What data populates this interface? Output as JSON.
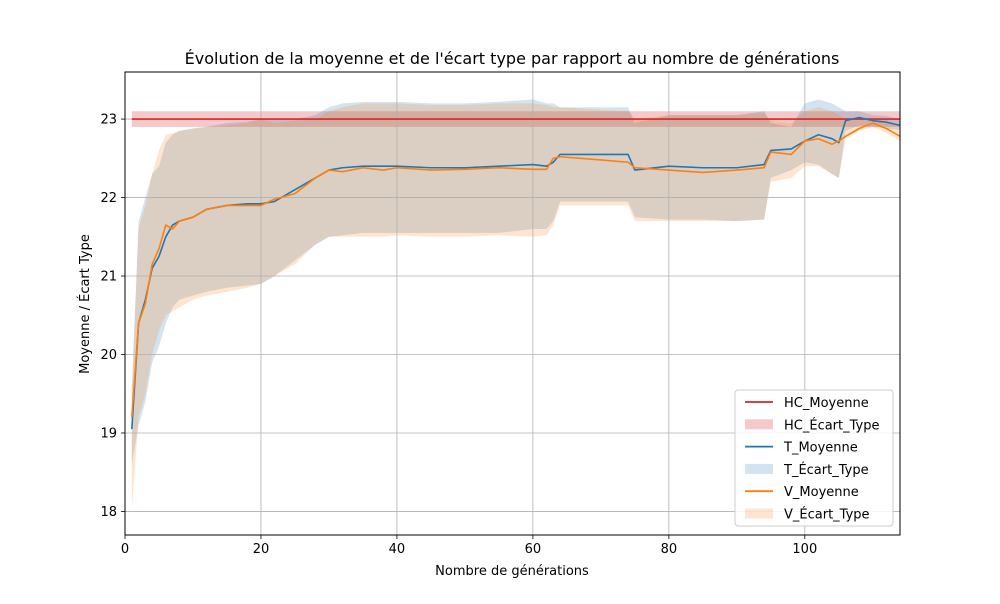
{
  "chart_data": {
    "type": "line",
    "title": "Évolution de la moyenne et de l'écart type par rapport au nombre de générations",
    "xlabel": "Nombre de générations",
    "ylabel": "Moyenne / Écart Type",
    "xlim": [
      0,
      114
    ],
    "ylim": [
      17.7,
      23.6
    ],
    "xticks": [
      0,
      20,
      40,
      60,
      80,
      100
    ],
    "yticks": [
      18,
      19,
      20,
      21,
      22,
      23
    ],
    "grid": true,
    "legend_position": "lower right",
    "legend": [
      "HC_Moyenne",
      "HC_Écart_Type",
      "T_Moyenne",
      "T_Écart_Type",
      "V_Moyenne",
      "V_Écart_Type"
    ],
    "colors": {
      "hc": "#d62728",
      "t": "#1f77b4",
      "v": "#ff7f0e"
    },
    "hc": {
      "mean": 23.0,
      "band": [
        22.9,
        23.1
      ],
      "x_range": [
        1,
        114
      ]
    },
    "series": [
      {
        "name": "T_Moyenne",
        "band_name": "T_Écart_Type",
        "x": [
          1,
          2,
          3,
          4,
          5,
          6,
          7,
          8,
          10,
          12,
          15,
          18,
          20,
          22,
          25,
          28,
          30,
          32,
          35,
          38,
          40,
          45,
          50,
          55,
          60,
          62,
          63,
          64,
          70,
          74,
          75,
          80,
          85,
          90,
          94,
          95,
          98,
          100,
          102,
          104,
          105,
          106,
          108,
          110,
          112,
          114
        ],
        "values": [
          19.05,
          20.4,
          20.7,
          21.1,
          21.25,
          21.5,
          21.65,
          21.7,
          21.75,
          21.85,
          21.9,
          21.92,
          21.92,
          21.95,
          22.1,
          22.25,
          22.35,
          22.38,
          22.4,
          22.4,
          22.4,
          22.38,
          22.38,
          22.4,
          22.42,
          22.4,
          22.45,
          22.55,
          22.55,
          22.55,
          22.35,
          22.4,
          22.38,
          22.38,
          22.42,
          22.6,
          22.62,
          22.72,
          22.8,
          22.75,
          22.7,
          22.98,
          23.02,
          22.98,
          22.96,
          22.92
        ],
        "band_lower": [
          18.6,
          19.1,
          19.4,
          19.9,
          20.1,
          20.4,
          20.6,
          20.7,
          20.75,
          20.8,
          20.85,
          20.88,
          20.9,
          21.0,
          21.2,
          21.4,
          21.5,
          21.52,
          21.55,
          21.55,
          21.55,
          21.55,
          21.55,
          21.55,
          21.6,
          21.6,
          21.7,
          21.95,
          21.95,
          21.95,
          21.75,
          21.72,
          21.72,
          21.7,
          21.72,
          22.25,
          22.35,
          22.45,
          22.42,
          22.3,
          22.25,
          22.85,
          22.92,
          22.9,
          22.88,
          22.86
        ],
        "band_upper": [
          19.5,
          21.7,
          22.0,
          22.3,
          22.4,
          22.7,
          22.8,
          22.85,
          22.88,
          22.9,
          22.95,
          22.97,
          23.0,
          23.0,
          23.0,
          23.05,
          23.15,
          23.2,
          23.22,
          23.22,
          23.22,
          23.2,
          23.2,
          23.22,
          23.25,
          23.2,
          23.2,
          23.15,
          23.15,
          23.15,
          22.95,
          23.05,
          23.05,
          23.05,
          23.1,
          22.95,
          22.9,
          23.2,
          23.25,
          23.2,
          23.15,
          23.1,
          23.1,
          23.05,
          23.04,
          23.0
        ]
      },
      {
        "name": "V_Moyenne",
        "band_name": "V_Écart_Type",
        "x": [
          1,
          2,
          3,
          4,
          5,
          6,
          7,
          8,
          10,
          12,
          15,
          18,
          20,
          22,
          25,
          28,
          30,
          32,
          35,
          38,
          40,
          45,
          50,
          55,
          60,
          62,
          63,
          64,
          70,
          74,
          75,
          80,
          85,
          90,
          94,
          95,
          98,
          100,
          102,
          104,
          105,
          106,
          108,
          110,
          112,
          114
        ],
        "values": [
          19.2,
          20.4,
          20.65,
          21.15,
          21.35,
          21.65,
          21.6,
          21.7,
          21.75,
          21.85,
          21.9,
          21.9,
          21.9,
          21.98,
          22.05,
          22.25,
          22.35,
          22.33,
          22.38,
          22.35,
          22.38,
          22.35,
          22.36,
          22.38,
          22.36,
          22.36,
          22.5,
          22.52,
          22.48,
          22.45,
          22.38,
          22.35,
          22.32,
          22.35,
          22.38,
          22.58,
          22.55,
          22.72,
          22.75,
          22.68,
          22.72,
          22.78,
          22.88,
          22.95,
          22.88,
          22.78
        ],
        "band_lower": [
          18.0,
          19.2,
          19.5,
          20.0,
          20.3,
          20.5,
          20.55,
          20.6,
          20.7,
          20.75,
          20.8,
          20.85,
          20.9,
          21.0,
          21.15,
          21.4,
          21.5,
          21.5,
          21.5,
          21.5,
          21.52,
          21.5,
          21.5,
          21.52,
          21.5,
          21.52,
          21.65,
          21.9,
          21.9,
          21.9,
          21.7,
          21.7,
          21.7,
          21.7,
          21.72,
          22.2,
          22.25,
          22.4,
          22.4,
          22.3,
          22.25,
          22.75,
          22.85,
          22.9,
          22.82,
          22.72
        ],
        "band_upper": [
          19.6,
          21.6,
          21.9,
          22.3,
          22.6,
          22.8,
          22.82,
          22.85,
          22.88,
          22.9,
          22.92,
          22.95,
          23.0,
          22.95,
          22.98,
          23.0,
          23.1,
          23.15,
          23.2,
          23.2,
          23.2,
          23.18,
          23.18,
          23.2,
          23.2,
          23.18,
          23.15,
          23.15,
          23.12,
          23.1,
          23.0,
          23.05,
          23.05,
          23.05,
          23.08,
          22.98,
          22.95,
          23.1,
          23.15,
          23.1,
          23.05,
          23.0,
          23.02,
          23.02,
          23.0,
          22.9
        ]
      }
    ]
  }
}
